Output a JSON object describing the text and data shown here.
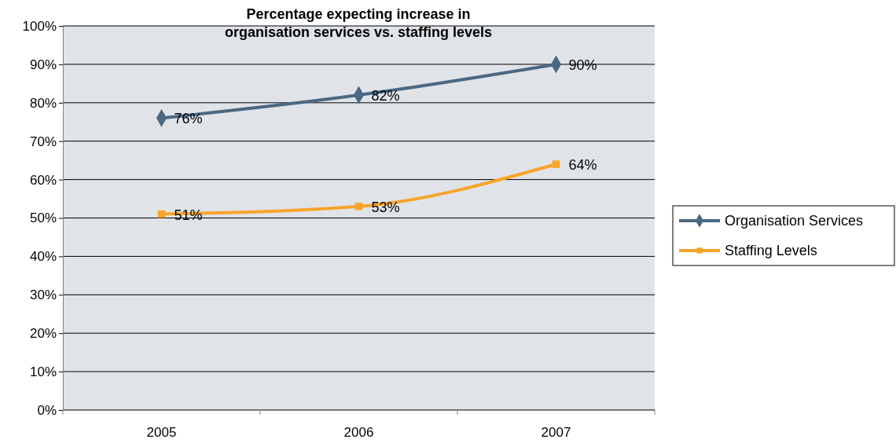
{
  "chart_data": {
    "type": "line",
    "title": "Percentage expecting increase in\norganisation services vs. staffing levels",
    "categories": [
      "2005",
      "2006",
      "2007"
    ],
    "series": [
      {
        "name": "Organisation Services",
        "color": "#4a6882",
        "values": [
          76,
          82,
          90
        ],
        "marker": "diamond"
      },
      {
        "name": "Staffing Levels",
        "color": "#f9a42a",
        "values": [
          51,
          53,
          64
        ],
        "marker": "square"
      }
    ],
    "ylim": [
      0,
      100
    ],
    "yticks": [
      {
        "value": 0,
        "label": "0%"
      },
      {
        "value": 10,
        "label": "10%"
      },
      {
        "value": 20,
        "label": "20%"
      },
      {
        "value": 30,
        "label": "30%"
      },
      {
        "value": 40,
        "label": "40%"
      },
      {
        "value": 50,
        "label": "50%"
      },
      {
        "value": 60,
        "label": "60%"
      },
      {
        "value": 70,
        "label": "70%"
      },
      {
        "value": 80,
        "label": "80%"
      },
      {
        "value": 90,
        "label": "90%"
      },
      {
        "value": 100,
        "label": "100%"
      }
    ],
    "value_labels": [
      [
        "76%",
        "82%",
        "90%"
      ],
      [
        "51%",
        "53%",
        "64%"
      ]
    ],
    "grid": "y",
    "legend": "right",
    "line_style": "solid"
  }
}
